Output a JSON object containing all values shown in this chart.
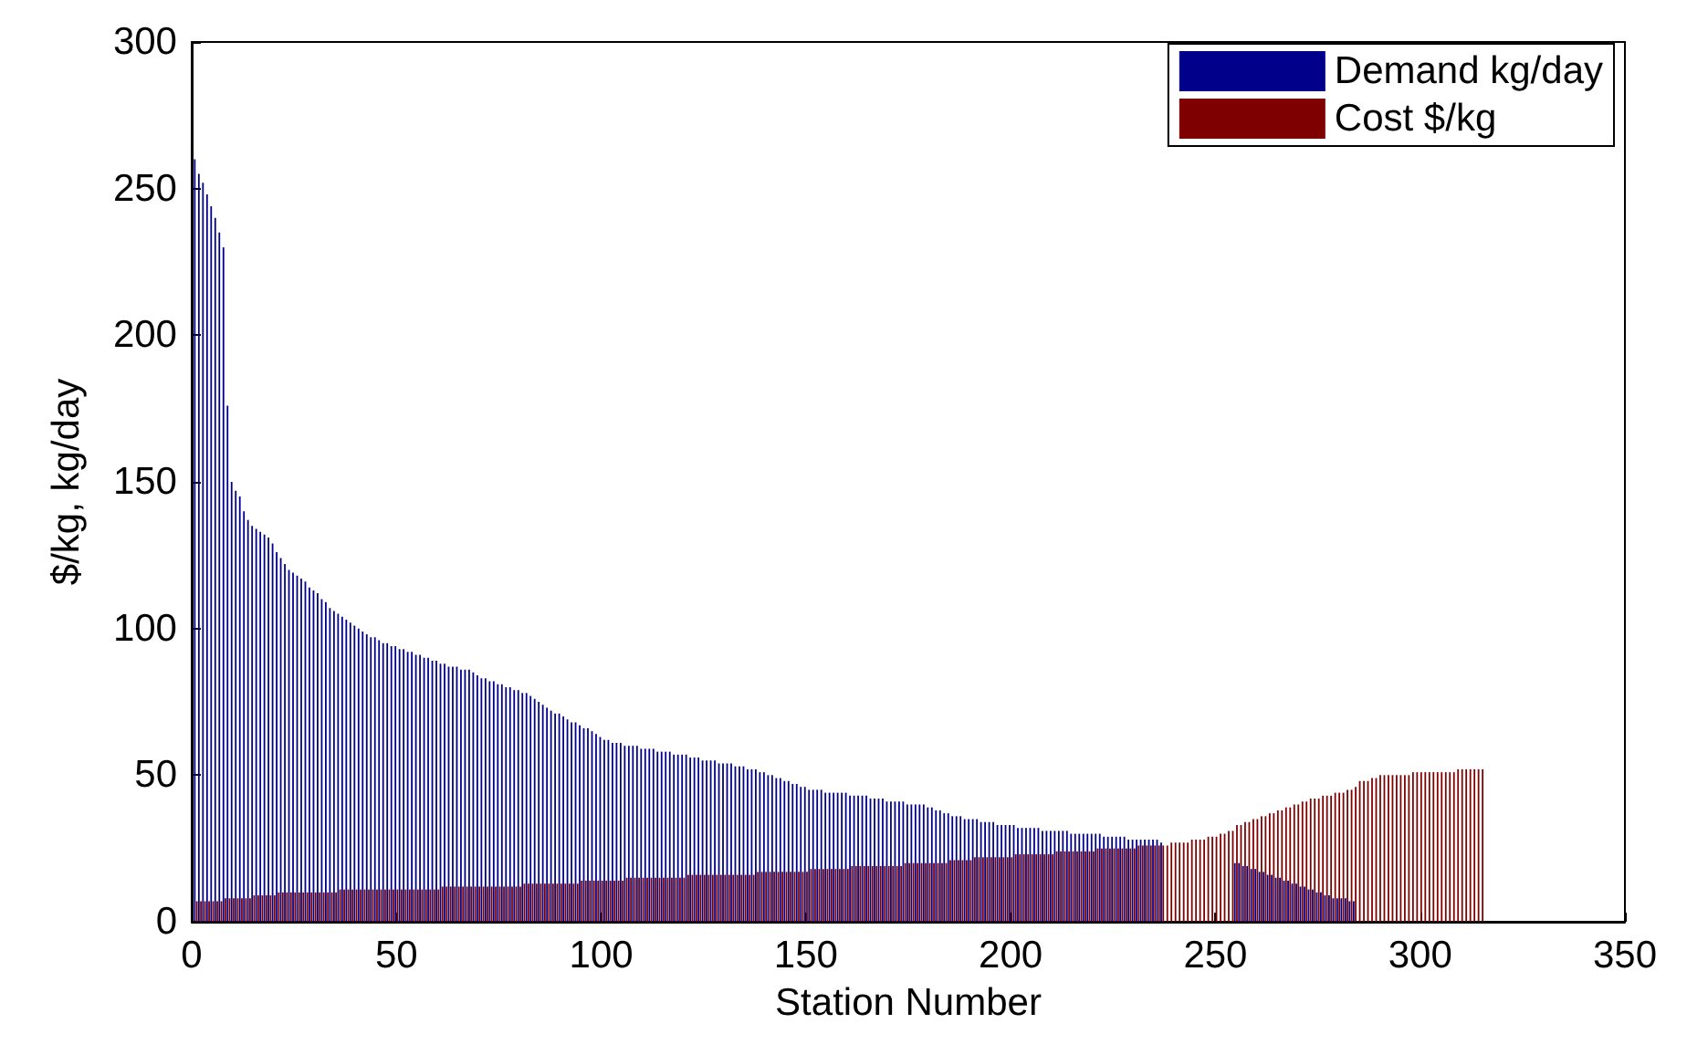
{
  "chart_data": {
    "type": "bar",
    "xlabel": "Station Number",
    "ylabel": "$/kg, kg/day",
    "x": [
      1,
      2,
      3,
      4,
      5,
      6,
      7,
      8,
      9,
      10,
      11,
      12,
      13,
      14,
      15,
      16,
      17,
      18,
      19,
      20,
      21,
      22,
      23,
      24,
      25,
      26,
      27,
      28,
      29,
      30,
      31,
      32,
      33,
      34,
      35,
      36,
      37,
      38,
      39,
      40,
      41,
      42,
      43,
      44,
      45,
      46,
      47,
      48,
      49,
      50,
      51,
      52,
      53,
      54,
      55,
      56,
      57,
      58,
      59,
      60,
      61,
      62,
      63,
      64,
      65,
      66,
      67,
      68,
      69,
      70,
      71,
      72,
      73,
      74,
      75,
      76,
      77,
      78,
      79,
      80,
      81,
      82,
      83,
      84,
      85,
      86,
      87,
      88,
      89,
      90,
      91,
      92,
      93,
      94,
      95,
      96,
      97,
      98,
      99,
      100,
      101,
      102,
      103,
      104,
      105,
      106,
      107,
      108,
      109,
      110,
      111,
      112,
      113,
      114,
      115,
      116,
      117,
      118,
      119,
      120,
      121,
      122,
      123,
      124,
      125,
      126,
      127,
      128,
      129,
      130,
      131,
      132,
      133,
      134,
      135,
      136,
      137,
      138,
      139,
      140,
      141,
      142,
      143,
      144,
      145,
      146,
      147,
      148,
      149,
      150,
      151,
      152,
      153,
      154,
      155,
      156,
      157,
      158,
      159,
      160,
      161,
      162,
      163,
      164,
      165,
      166,
      167,
      168,
      169,
      170,
      171,
      172,
      173,
      174,
      175,
      176,
      177,
      178,
      179,
      180,
      181,
      182,
      183,
      184,
      185,
      186,
      187,
      188,
      189,
      190,
      191,
      192,
      193,
      194,
      195,
      196,
      197,
      198,
      199,
      200,
      201,
      202,
      203,
      204,
      205,
      206,
      207,
      208,
      209,
      210,
      211,
      212,
      213,
      214,
      215,
      216,
      217,
      218,
      219,
      220,
      221,
      222,
      223,
      224,
      225,
      226,
      227,
      228,
      229,
      230,
      231,
      232,
      233,
      234,
      235,
      236,
      237,
      238,
      239,
      240,
      241,
      242,
      243,
      244,
      245,
      246,
      247,
      248,
      249,
      250,
      251,
      252,
      253,
      254,
      255,
      256,
      257,
      258,
      259,
      260,
      261,
      262,
      263,
      264,
      265,
      266,
      267,
      268,
      269,
      270,
      271,
      272,
      273,
      274,
      275,
      276,
      277,
      278,
      279,
      280,
      281,
      282,
      283,
      284,
      285,
      286,
      287,
      288,
      289,
      290,
      291,
      292,
      293,
      294,
      295,
      296,
      297,
      298,
      299,
      300,
      301,
      302,
      303,
      304,
      305,
      306,
      307,
      308,
      309,
      310,
      311,
      312,
      313,
      314,
      315
    ],
    "series": [
      {
        "name": "Demand kg/day",
        "color": "#00008b",
        "values": [
          260,
          255,
          252,
          248,
          244,
          240,
          235,
          230,
          176,
          150,
          147,
          145,
          140,
          137,
          135,
          134,
          133,
          132,
          131,
          129,
          126,
          124,
          122,
          120,
          119,
          118,
          117,
          116,
          114,
          113,
          112,
          110,
          109,
          107,
          106,
          105,
          104,
          103,
          102,
          101,
          100,
          99,
          98,
          97,
          97,
          96,
          95,
          95,
          94,
          94,
          93,
          93,
          92,
          92,
          91,
          91,
          90,
          90,
          89,
          89,
          88,
          88,
          87,
          87,
          87,
          86,
          86,
          86,
          85,
          84,
          83,
          83,
          82,
          82,
          81,
          81,
          80,
          80,
          79,
          79,
          78,
          78,
          77,
          76,
          75,
          74,
          73,
          72,
          71,
          71,
          70,
          69,
          68,
          68,
          67,
          66,
          66,
          65,
          64,
          63,
          62,
          62,
          61,
          61,
          61,
          60,
          60,
          60,
          60,
          59,
          59,
          59,
          59,
          58,
          58,
          58,
          58,
          57,
          57,
          57,
          57,
          56,
          56,
          56,
          55,
          55,
          55,
          55,
          54,
          54,
          54,
          54,
          53,
          53,
          53,
          52,
          52,
          52,
          51,
          51,
          50,
          50,
          49,
          49,
          48,
          48,
          47,
          47,
          46,
          46,
          45,
          45,
          45,
          45,
          44,
          44,
          44,
          44,
          44,
          44,
          43,
          43,
          43,
          43,
          43,
          42,
          42,
          42,
          42,
          41,
          41,
          41,
          41,
          41,
          40,
          40,
          40,
          40,
          40,
          39,
          39,
          38,
          38,
          37,
          37,
          36,
          36,
          36,
          35,
          35,
          35,
          35,
          34,
          34,
          34,
          34,
          33,
          33,
          33,
          33,
          33,
          32,
          32,
          32,
          32,
          32,
          32,
          31,
          31,
          31,
          31,
          31,
          31,
          31,
          30,
          30,
          30,
          30,
          30,
          30,
          30,
          30,
          29,
          29,
          29,
          29,
          29,
          29,
          28,
          28,
          28,
          28,
          28,
          28,
          28,
          28,
          27,
          null,
          null,
          null,
          null,
          null,
          null,
          null,
          null,
          null,
          null,
          null,
          null,
          null,
          null,
          null,
          null,
          null,
          20,
          20,
          19,
          19,
          18,
          18,
          17,
          17,
          16,
          16,
          15,
          15,
          14,
          14,
          13,
          13,
          12,
          12,
          11,
          11,
          10,
          10,
          9,
          9,
          8,
          8,
          8,
          8,
          7,
          7,
          null,
          null,
          null,
          null,
          null,
          null,
          null,
          null,
          null,
          null,
          null,
          null,
          null,
          null,
          null,
          null,
          null,
          null,
          null,
          null,
          null,
          null,
          null,
          null,
          null,
          null,
          null,
          null,
          null,
          null,
          null
        ]
      },
      {
        "name": "Cost $/kg",
        "color": "#7f0000",
        "values": [
          7,
          7,
          7,
          7,
          7,
          7,
          7,
          8,
          8,
          8,
          8,
          8,
          8,
          8,
          9,
          9,
          9,
          9,
          9,
          9,
          10,
          10,
          10,
          10,
          10,
          10,
          10,
          10,
          10,
          10,
          10,
          10,
          10,
          10,
          10,
          11,
          11,
          11,
          11,
          11,
          11,
          11,
          11,
          11,
          11,
          11,
          11,
          11,
          11,
          11,
          11,
          11,
          11,
          11,
          11,
          11,
          11,
          11,
          11,
          11,
          12,
          12,
          12,
          12,
          12,
          12,
          12,
          12,
          12,
          12,
          12,
          12,
          12,
          12,
          12,
          12,
          12,
          12,
          12,
          12,
          13,
          13,
          13,
          13,
          13,
          13,
          13,
          13,
          13,
          13,
          13,
          13,
          13,
          13,
          14,
          14,
          14,
          14,
          14,
          14,
          14,
          14,
          14,
          14,
          14,
          15,
          15,
          15,
          15,
          15,
          15,
          15,
          15,
          15,
          15,
          15,
          15,
          15,
          15,
          15,
          16,
          16,
          16,
          16,
          16,
          16,
          16,
          16,
          16,
          16,
          16,
          16,
          16,
          16,
          16,
          16,
          16,
          17,
          17,
          17,
          17,
          17,
          17,
          17,
          17,
          17,
          17,
          17,
          17,
          17,
          18,
          18,
          18,
          18,
          18,
          18,
          18,
          18,
          18,
          18,
          19,
          19,
          19,
          19,
          19,
          19,
          19,
          19,
          19,
          19,
          19,
          19,
          19,
          20,
          20,
          20,
          20,
          20,
          20,
          20,
          20,
          20,
          20,
          20,
          21,
          21,
          21,
          21,
          21,
          21,
          22,
          22,
          22,
          22,
          22,
          22,
          22,
          22,
          22,
          22,
          23,
          23,
          23,
          23,
          23,
          23,
          23,
          23,
          23,
          23,
          24,
          24,
          24,
          24,
          24,
          24,
          24,
          24,
          24,
          24,
          25,
          25,
          25,
          25,
          25,
          25,
          25,
          25,
          25,
          25,
          26,
          26,
          26,
          26,
          26,
          26,
          26,
          26,
          27,
          27,
          27,
          27,
          27,
          28,
          28,
          28,
          28,
          29,
          29,
          29,
          30,
          30,
          31,
          31,
          33,
          33,
          34,
          34,
          35,
          35,
          36,
          36,
          37,
          37,
          38,
          38,
          39,
          39,
          40,
          40,
          41,
          41,
          42,
          42,
          42,
          43,
          43,
          43,
          44,
          44,
          44,
          45,
          45,
          46,
          48,
          48,
          48,
          49,
          49,
          50,
          50,
          50,
          50,
          50,
          50,
          50,
          50,
          51,
          51,
          51,
          51,
          51,
          51,
          51,
          51,
          51,
          51,
          51,
          52,
          52,
          52,
          52,
          52,
          52,
          52
        ]
      }
    ],
    "xlim": [
      0,
      350
    ],
    "xticks": [
      0,
      50,
      100,
      150,
      200,
      250,
      300,
      350
    ],
    "ylim": [
      0,
      300
    ],
    "yticks": [
      0,
      50,
      100,
      150,
      200,
      250,
      300
    ],
    "grid": false,
    "legend": "top right"
  }
}
